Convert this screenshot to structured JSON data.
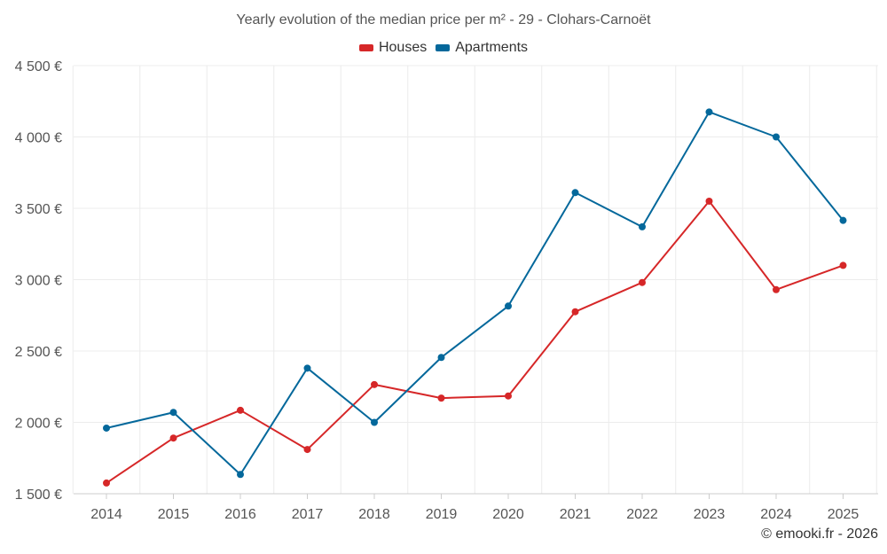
{
  "chart_data": {
    "type": "line",
    "title": "Yearly evolution of the median price per m² - 29 - Clohars-Carnoët",
    "categories": [
      "2014",
      "2015",
      "2016",
      "2017",
      "2018",
      "2019",
      "2020",
      "2021",
      "2022",
      "2023",
      "2024",
      "2025"
    ],
    "series": [
      {
        "name": "Houses",
        "color": "#d62728",
        "values": [
          1575,
          1890,
          2085,
          1810,
          2265,
          2170,
          2185,
          2775,
          2980,
          3550,
          2930,
          3100
        ]
      },
      {
        "name": "Apartments",
        "color": "#04689b",
        "values": [
          1960,
          2070,
          1635,
          2380,
          2000,
          2455,
          2815,
          3610,
          3370,
          4175,
          4000,
          3415
        ]
      }
    ],
    "ylim": [
      1500,
      4500
    ],
    "yticks": [
      1500,
      2000,
      2500,
      3000,
      3500,
      4000,
      4500
    ],
    "ytick_labels": [
      "1 500 €",
      "2 000 €",
      "2 500 €",
      "3 000 €",
      "3 500 €",
      "4 000 €",
      "4 500 €"
    ],
    "grid": true,
    "legend": "top-center",
    "xlabel": "",
    "ylabel": ""
  },
  "credit": "© emooki.fr - 2026"
}
